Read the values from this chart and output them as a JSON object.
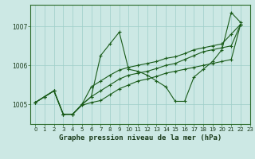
{
  "title": "Graphe pression niveau de la mer (hPa)",
  "bg_color": "#cce8e4",
  "grid_color": "#9ecec8",
  "line_color": "#1a5c1a",
  "series1": [
    0,
    1,
    2,
    3,
    4,
    5,
    6,
    7,
    8,
    9,
    10,
    11,
    12,
    13,
    14,
    15,
    16,
    17,
    18,
    19,
    20,
    21,
    22
  ],
  "s1y": [
    1005.05,
    1005.2,
    1005.35,
    1004.75,
    1004.75,
    1005.0,
    1005.2,
    1006.25,
    1006.55,
    1006.85,
    1005.9,
    1005.85,
    1005.75,
    1005.6,
    1005.45,
    1005.08,
    1005.08,
    1005.7,
    1005.9,
    1006.1,
    1006.4,
    1007.35,
    1007.1
  ],
  "series2": [
    0,
    1,
    2,
    3,
    4,
    5,
    6,
    7,
    8,
    9,
    10,
    11,
    12,
    13,
    14,
    15,
    16,
    17,
    18,
    19,
    20,
    21,
    22
  ],
  "s2y": [
    1005.05,
    1005.2,
    1005.35,
    1004.75,
    1004.75,
    1005.0,
    1005.45,
    1005.6,
    1005.75,
    1005.88,
    1005.95,
    1006.0,
    1006.05,
    1006.1,
    1006.18,
    1006.22,
    1006.3,
    1006.4,
    1006.45,
    1006.5,
    1006.55,
    1006.8,
    1007.05
  ],
  "series3": [
    0,
    1,
    2,
    3,
    4,
    5,
    6,
    7,
    8,
    9,
    10,
    11,
    12,
    13,
    14,
    15,
    16,
    17,
    18,
    19,
    20,
    21,
    22
  ],
  "s3y": [
    1005.05,
    1005.2,
    1005.35,
    1004.75,
    1004.75,
    1005.0,
    1005.2,
    1005.35,
    1005.5,
    1005.65,
    1005.75,
    1005.8,
    1005.85,
    1005.92,
    1006.0,
    1006.05,
    1006.15,
    1006.25,
    1006.35,
    1006.4,
    1006.45,
    1006.5,
    1007.05
  ],
  "series4": [
    0,
    1,
    2,
    3,
    4,
    5,
    6,
    7,
    8,
    9,
    10,
    11,
    12,
    13,
    14,
    15,
    16,
    17,
    18,
    19,
    20,
    21,
    22
  ],
  "s4y": [
    1005.05,
    1005.2,
    1005.35,
    1004.75,
    1004.75,
    1004.98,
    1005.05,
    1005.1,
    1005.25,
    1005.4,
    1005.5,
    1005.6,
    1005.65,
    1005.72,
    1005.8,
    1005.85,
    1005.9,
    1005.95,
    1006.0,
    1006.05,
    1006.1,
    1006.15,
    1007.05
  ],
  "xlim": [
    -0.5,
    23
  ],
  "ylim": [
    1004.5,
    1007.55
  ],
  "yticks": [
    1005,
    1006,
    1007
  ],
  "xticks": [
    0,
    1,
    2,
    3,
    4,
    5,
    6,
    7,
    8,
    9,
    10,
    11,
    12,
    13,
    14,
    15,
    16,
    17,
    18,
    19,
    20,
    21,
    22,
    23
  ],
  "tick_fontsize": 5,
  "title_fontsize": 6.5
}
